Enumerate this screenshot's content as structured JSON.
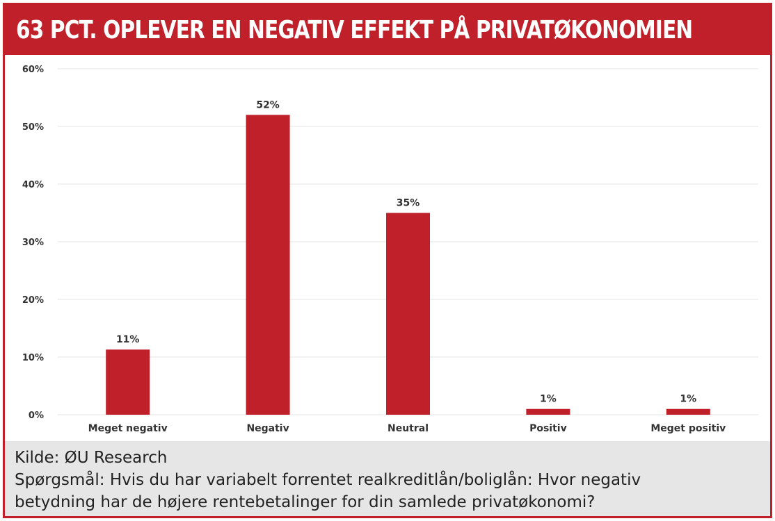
{
  "header": {
    "title": "63 PCT. OPLEVER EN NEGATIV EFFEKT PÅ PRIVATØKONOMIEN"
  },
  "chart_data": {
    "type": "bar",
    "title": "63 PCT. OPLEVER EN NEGATIV EFFEKT PÅ PRIVATØKONOMIEN",
    "categories": [
      "Meget negativ",
      "Negativ",
      "Neutral",
      "Positiv",
      "Meget positiv"
    ],
    "values": [
      11.3,
      52,
      35,
      1,
      1
    ],
    "value_labels": [
      "11%",
      "52%",
      "35%",
      "1%",
      "1%"
    ],
    "yticks": [
      0,
      10,
      20,
      30,
      40,
      50,
      60
    ],
    "ytick_labels": [
      "0%",
      "10%",
      "20%",
      "30%",
      "40%",
      "50%",
      "60%"
    ],
    "ylim": [
      0,
      60
    ],
    "xlabel": "",
    "ylabel": "",
    "grid": true,
    "bar_color": "#c0202a"
  },
  "footer": {
    "source": "Kilde: ØU Research",
    "question_line1": "Spørgsmål: Hvis du har variabelt forrentet realkreditlån/boliglån: Hvor negativ",
    "question_line2": "betydning har de højere rentebetalinger for din samlede privatøkonomi?"
  },
  "colors": {
    "accent": "#c0202a",
    "footer_bg": "#e6e6e6",
    "grid": "#e3e3e3"
  }
}
